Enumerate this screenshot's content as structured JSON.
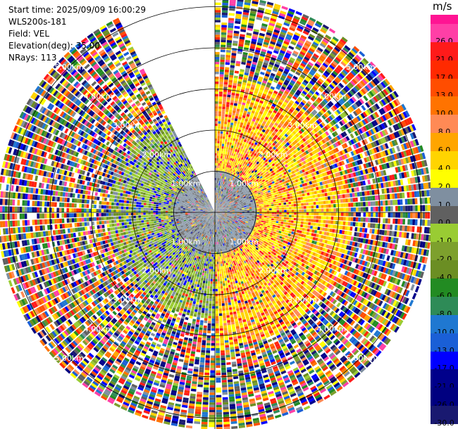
{
  "info": {
    "start_time": "Start time: 2025/09/09 16:00:29",
    "instrument": "WLS200s-181",
    "field": "Field: VEL",
    "elevation": "Elevation(deg): 35.00",
    "nrays": "NRays: 113"
  },
  "colorbar": {
    "unit": "m/s",
    "levels": [
      {
        "label": "26.0",
        "color": "#ff3fa6"
      },
      {
        "label": "21.0",
        "color": "#ff1a1a"
      },
      {
        "label": "17.0",
        "color": "#ff2a00"
      },
      {
        "label": "13.0",
        "color": "#ff4d00"
      },
      {
        "label": "10.0",
        "color": "#ff7300"
      },
      {
        "label": "8.0",
        "color": "#ff8a55"
      },
      {
        "label": "6.0",
        "color": "#ffa500"
      },
      {
        "label": "4.0",
        "color": "#ffd400"
      },
      {
        "label": "2.0",
        "color": "#ffff00"
      },
      {
        "label": "1.0",
        "color": "#7f8fa0"
      },
      {
        "label": "0.0",
        "color": "#606060"
      },
      {
        "label": "-1.0",
        "color": "#99cc33"
      },
      {
        "label": "-2.0",
        "color": "#7da02d"
      },
      {
        "label": "-4.0",
        "color": "#6b8e23"
      },
      {
        "label": "-6.0",
        "color": "#228b22"
      },
      {
        "label": "-8.0",
        "color": "#2e8b57"
      },
      {
        "label": "-10.0",
        "color": "#1f78d1"
      },
      {
        "label": "-13.0",
        "color": "#1a5fd6"
      },
      {
        "label": "-17.0",
        "color": "#0000ff"
      },
      {
        "label": "-21.0",
        "color": "#00008b"
      },
      {
        "label": "-26.0",
        "color": "#000080"
      },
      {
        "label": "-30.0",
        "color": "#191970"
      }
    ],
    "top_color": "#ff1493"
  },
  "chart_data": {
    "type": "heatmap",
    "subtype": "polar-ppi",
    "field": "VEL",
    "units": "m/s",
    "nrays": 113,
    "elevation_deg": 35.0,
    "range_rings_km": [
      1.0,
      2.0,
      3.0,
      4.0,
      5.0
    ],
    "range_ring_labels": [
      "1.00km",
      "2.00km",
      "3.00km",
      "4.00km",
      "5.00km"
    ],
    "max_range_km": 5.3,
    "missing_sector_deg": [
      333,
      360
    ],
    "inner_region_km": 1.0,
    "regions": [
      {
        "sector_deg": [
          0,
          180
        ],
        "range_km": [
          1.0,
          4.0
        ],
        "dominant_velocity": "4.0 to 10.0"
      },
      {
        "sector_deg": [
          180,
          360
        ],
        "range_km": [
          1.0,
          3.0
        ],
        "dominant_velocity": "-4.0 to -1.0"
      },
      {
        "sector_deg": [
          0,
          360
        ],
        "range_km": [
          0.0,
          1.0
        ],
        "dominant_velocity": "0.0 to 1.0"
      },
      {
        "sector_deg": [
          0,
          360
        ],
        "range_km": [
          3.5,
          5.3
        ],
        "dominant_velocity": "noise (mixed)"
      }
    ],
    "colorscale_ticks": [
      26.0,
      21.0,
      17.0,
      13.0,
      10.0,
      8.0,
      6.0,
      4.0,
      2.0,
      1.0,
      0.0,
      -1.0,
      -2.0,
      -4.0,
      -6.0,
      -8.0,
      -10.0,
      -13.0,
      -17.0,
      -21.0,
      -26.0,
      -30.0
    ]
  }
}
